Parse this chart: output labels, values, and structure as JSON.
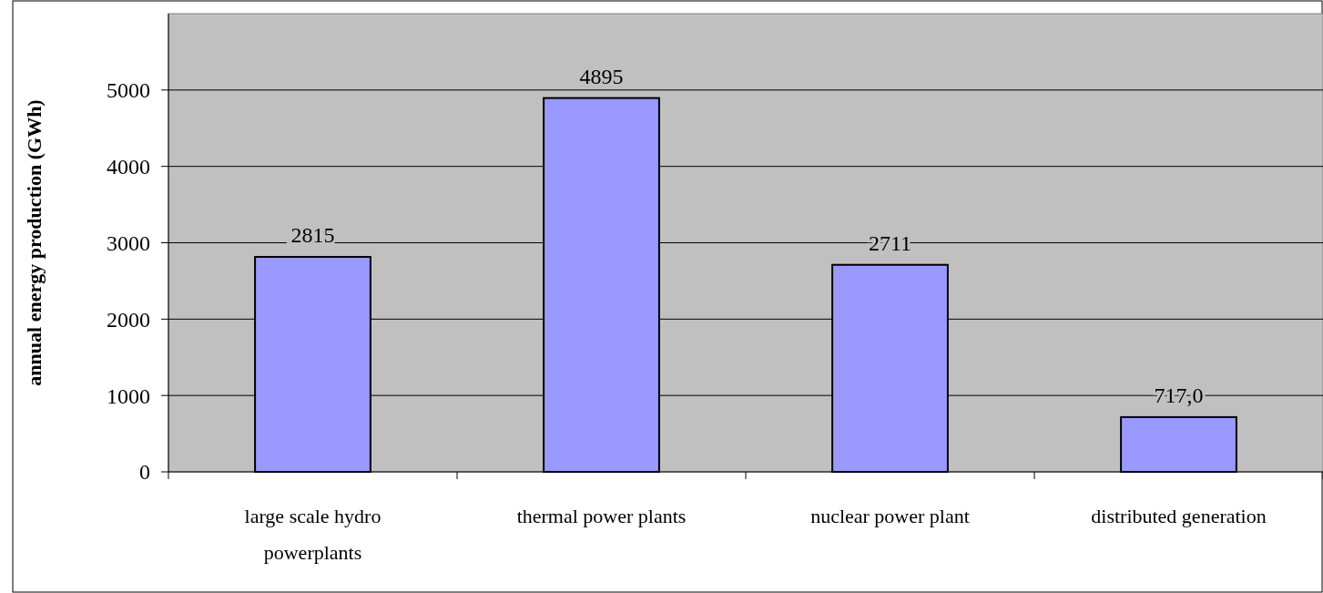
{
  "chart_data": {
    "type": "bar",
    "ylabel": "annual energy production (GWh)",
    "categories": [
      "large scale hydro powerplants",
      "thermal power plants",
      "nuclear power plant",
      "distributed generation"
    ],
    "values": [
      2815,
      4895,
      2711,
      717
    ],
    "value_labels": [
      "2815",
      "4895",
      "2711",
      "717,0"
    ],
    "color": "#9999ff",
    "ylim": [
      0,
      6000
    ],
    "yticks": [
      0,
      1000,
      2000,
      3000,
      4000,
      5000
    ],
    "grid": "y"
  }
}
